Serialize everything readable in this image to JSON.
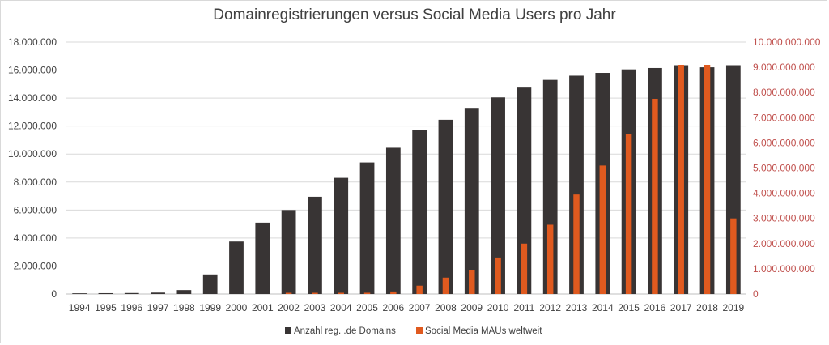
{
  "chart_data": {
    "type": "bar",
    "title": "Domainregistrierungen versus Social Media Users pro Jahr",
    "categories": [
      "1994",
      "1995",
      "1996",
      "1997",
      "1998",
      "1999",
      "2000",
      "2001",
      "2002",
      "2003",
      "2004",
      "2005",
      "2006",
      "2007",
      "2008",
      "2009",
      "2010",
      "2011",
      "2012",
      "2013",
      "2014",
      "2015",
      "2016",
      "2017",
      "2018",
      "2019"
    ],
    "series": [
      {
        "name": "Anzahl reg. .de Domains",
        "axis": "left",
        "color": "#383434",
        "values": [
          50000,
          60000,
          70000,
          100000,
          280000,
          1400000,
          3750000,
          5100000,
          6000000,
          6950000,
          8300000,
          9400000,
          10450000,
          11700000,
          12450000,
          13300000,
          14050000,
          14750000,
          15300000,
          15600000,
          15800000,
          16050000,
          16150000,
          16350000,
          16200000,
          16350000
        ]
      },
      {
        "name": "Social Media MAUs weltweit",
        "axis": "right",
        "color": "#e05a1f",
        "values": [
          0,
          0,
          0,
          0,
          0,
          0,
          0,
          0,
          20000000,
          25000000,
          40000000,
          50000000,
          100000000,
          330000000,
          650000000,
          950000000,
          1450000000,
          2000000000,
          2750000000,
          3950000000,
          5100000000,
          6350000000,
          7750000000,
          9100000000,
          9100000000,
          3000000000
        ]
      }
    ],
    "y_left": {
      "min": 0,
      "max": 18000000,
      "ticks": [
        "0",
        "2.000.000",
        "4.000.000",
        "6.000.000",
        "8.000.000",
        "10.000.000",
        "12.000.000",
        "14.000.000",
        "16.000.000",
        "18.000.000"
      ]
    },
    "y_right": {
      "min": 0,
      "max": 10000000000,
      "ticks": [
        "0",
        "1.000.000.000",
        "2.000.000.000",
        "3.000.000.000",
        "4.000.000.000",
        "5.000.000.000",
        "6.000.000.000",
        "7.000.000.000",
        "8.000.000.000",
        "9.000.000.000",
        "10.000.000.000"
      ],
      "color": "#e05a1f"
    },
    "grid": true,
    "legend": {
      "position": "bottom"
    }
  }
}
